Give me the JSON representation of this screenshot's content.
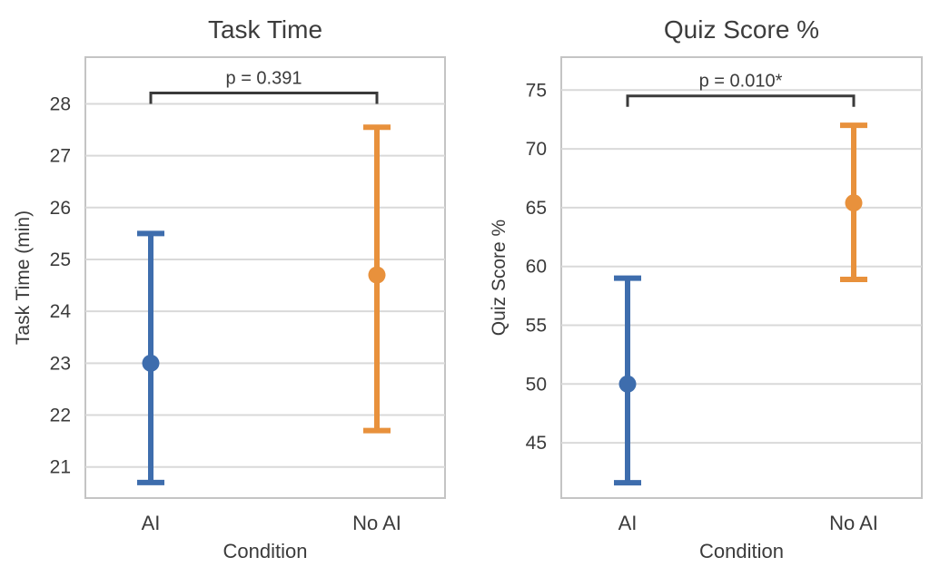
{
  "figure": {
    "background": "#ffffff",
    "colors": {
      "ai_blue": "#3e6dad",
      "no_ai_orange": "#e8913c",
      "grid": "#d9d9d9",
      "plot_border": "#c4c4c4",
      "text": "#3b3b3b",
      "bracket": "#3a3a3a"
    }
  },
  "chart_data": [
    {
      "type": "scatter",
      "subtype": "pointplot-with-error-bars",
      "title": "Task Time",
      "xlabel": "Condition",
      "ylabel": "Task Time (min)",
      "categories": [
        "AI",
        "No AI"
      ],
      "series": [
        {
          "name": "AI",
          "mean": 23.0,
          "ci_low": 20.7,
          "ci_high": 25.5,
          "color": "#3e6dad"
        },
        {
          "name": "No AI",
          "mean": 24.7,
          "ci_low": 21.7,
          "ci_high": 27.55,
          "color": "#e8913c"
        }
      ],
      "yticks": [
        21,
        22,
        23,
        24,
        25,
        26,
        27,
        28
      ],
      "ylim": [
        20.4,
        28.9
      ],
      "grid": true,
      "legend": false,
      "annotation": {
        "label": "p = 0.391",
        "line_y": 28.21,
        "text_y": 28.51
      }
    },
    {
      "type": "scatter",
      "subtype": "pointplot-with-error-bars",
      "title": "Quiz Score %",
      "xlabel": "Condition",
      "ylabel": "Quiz Score %",
      "categories": [
        "AI",
        "No AI"
      ],
      "series": [
        {
          "name": "AI",
          "mean": 50.0,
          "ci_low": 41.6,
          "ci_high": 59.0,
          "color": "#3e6dad"
        },
        {
          "name": "No AI",
          "mean": 65.4,
          "ci_low": 58.9,
          "ci_high": 72.0,
          "color": "#e8913c"
        }
      ],
      "yticks": [
        45,
        50,
        55,
        60,
        65,
        70,
        75
      ],
      "ylim": [
        40.3,
        77.8
      ],
      "grid": true,
      "legend": false,
      "annotation": {
        "label": "p = 0.010*",
        "line_y": 74.5,
        "text_y": 75.85
      }
    }
  ]
}
